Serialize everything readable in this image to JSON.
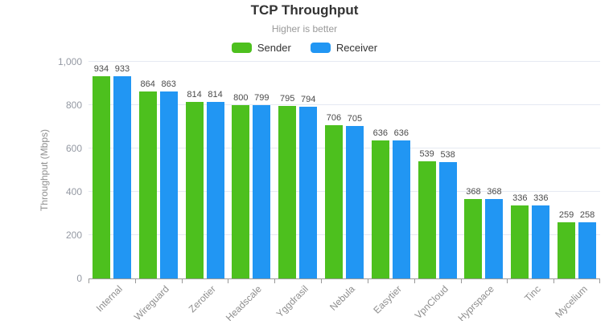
{
  "chart_data": {
    "type": "bar",
    "title": "TCP Throughput",
    "subtitle": "Higher is better",
    "xlabel": "",
    "ylabel": "Throughput (Mbps)",
    "categories": [
      "Internal",
      "Wireguard",
      "Zerotier",
      "Headscale",
      "Yggdrasil",
      "Nebula",
      "Easytier",
      "VpnCloud",
      "Hyprspace",
      "Tinc",
      "Mycelium"
    ],
    "series": [
      {
        "name": "Sender",
        "color": "#4dc01e",
        "values": [
          934,
          864,
          814,
          800,
          795,
          706,
          636,
          539,
          368,
          336,
          259
        ]
      },
      {
        "name": "Receiver",
        "color": "#2196f3",
        "values": [
          933,
          863,
          814,
          799,
          794,
          705,
          636,
          538,
          368,
          336,
          258
        ]
      }
    ],
    "ylim": [
      0,
      1000
    ],
    "yticks": [
      0,
      200,
      400,
      600,
      800,
      1000
    ],
    "ytick_labels": [
      "0",
      "200",
      "400",
      "600",
      "800",
      "1,000"
    ],
    "grid": true,
    "legend_position": "top"
  }
}
